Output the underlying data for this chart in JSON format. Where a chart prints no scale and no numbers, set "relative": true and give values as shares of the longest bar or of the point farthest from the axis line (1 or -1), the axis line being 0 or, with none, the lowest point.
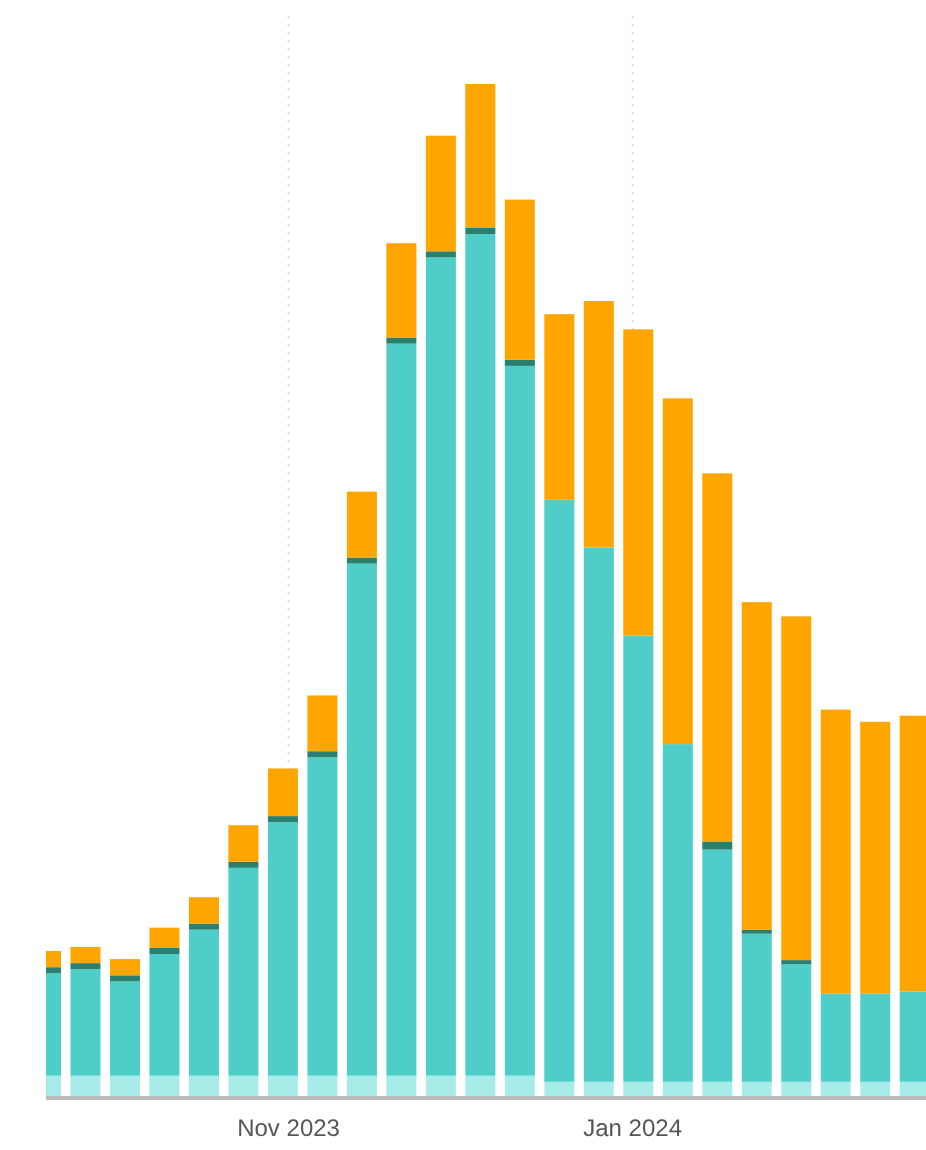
{
  "chart_data": {
    "type": "bar",
    "stacked": true,
    "relative": true,
    "grid": "x",
    "x": [
      "2023-09-19",
      "2023-09-26",
      "2023-10-03",
      "2023-10-10",
      "2023-10-17",
      "2023-10-24",
      "2023-10-31",
      "2023-11-07",
      "2023-11-14",
      "2023-11-21",
      "2023-11-28",
      "2023-12-05",
      "2023-12-12",
      "2023-12-19",
      "2023-12-26",
      "2024-01-02",
      "2024-01-09",
      "2024-01-16",
      "2024-01-23",
      "2024-01-30",
      "2024-02-06",
      "2024-02-13",
      "2024-02-20"
    ],
    "xlim": [
      "2023-09-19",
      "2024-02-22"
    ],
    "xticks": [
      {
        "value": "2023-11-01",
        "label": "Nov 2023"
      },
      {
        "value": "2024-01-01",
        "label": "Jan 2024"
      }
    ],
    "series": [
      {
        "color": "#a8ecea",
        "values": [
          0.022,
          0.022,
          0.022,
          0.022,
          0.022,
          0.022,
          0.022,
          0.022,
          0.022,
          0.022,
          0.022,
          0.022,
          0.022,
          0.016,
          0.016,
          0.016,
          0.016,
          0.016,
          0.016,
          0.016,
          0.016,
          0.016,
          0.016
        ]
      },
      {
        "color": "#4ecdc9",
        "values": [
          0.101,
          0.105,
          0.093,
          0.12,
          0.144,
          0.205,
          0.25,
          0.314,
          0.505,
          0.722,
          0.807,
          0.83,
          0.7,
          0.574,
          0.527,
          0.44,
          0.333,
          0.229,
          0.146,
          0.116,
          0.087,
          0.087,
          0.089
        ]
      },
      {
        "color": "#2a7f6e",
        "values": [
          0.006,
          0.006,
          0.006,
          0.006,
          0.006,
          0.006,
          0.006,
          0.006,
          0.006,
          0.006,
          0.006,
          0.006,
          0.006,
          0,
          0,
          0,
          0,
          0.008,
          0.004,
          0.004,
          0,
          0,
          0
        ]
      },
      {
        "color": "#ffa500",
        "values": [
          0.016,
          0.016,
          0.016,
          0.02,
          0.026,
          0.036,
          0.047,
          0.055,
          0.065,
          0.093,
          0.114,
          0.142,
          0.158,
          0.183,
          0.243,
          0.302,
          0.341,
          0.363,
          0.323,
          0.339,
          0.28,
          0.268,
          0.272
        ]
      }
    ]
  }
}
